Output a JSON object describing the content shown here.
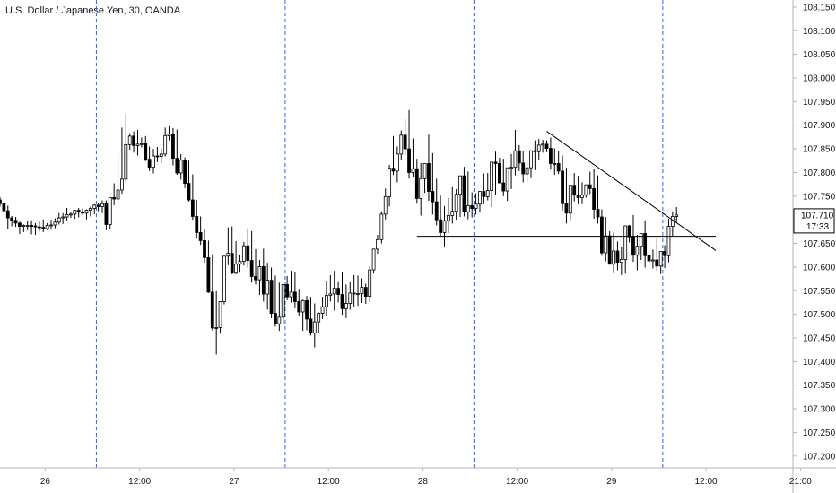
{
  "header": {
    "title": "U.S. Dollar / Japanese Yen, 30, OANDA"
  },
  "colors": {
    "candle_up_fill": "#ffffff",
    "candle_down_fill": "#000000",
    "candle_outline": "#000000",
    "session_line": "#2962ff",
    "axis_text": "#131722",
    "axis_line": "#b2b5be"
  },
  "price_label": {
    "value": "107.710",
    "countdown": "17:33"
  },
  "chart_data": {
    "type": "candlestick",
    "title": "U.S. Dollar / Japanese Yen, 30, OANDA",
    "ylim": [
      107.175,
      108.165
    ],
    "y_ticks": [
      "108.150",
      "108.100",
      "108.050",
      "108.000",
      "107.950",
      "107.900",
      "107.850",
      "107.800",
      "107.750",
      "107.650",
      "107.600",
      "107.550",
      "107.500",
      "107.450",
      "107.400",
      "107.350",
      "107.300",
      "107.250",
      "107.200"
    ],
    "x_ticks": [
      "26",
      "12:00",
      "27",
      "12:00",
      "28",
      "12:00",
      "29",
      "12:00",
      "21:00"
    ],
    "x_tick_bars": [
      11.5,
      35.5,
      59.5,
      83.5,
      107.5,
      131.5,
      155.5,
      179.5,
      203.5
    ],
    "session_breaks_bars": [
      24.5,
      72.5,
      120.5,
      168.5
    ],
    "current_price": 107.71,
    "horizontal_line": {
      "price": 107.665,
      "from_bar": 106,
      "to_bar": 182
    },
    "trend_line": {
      "from": {
        "bar": 139,
        "price": 107.887
      },
      "to": {
        "bar": 182,
        "price": 107.635
      }
    },
    "candles": {
      "open": [
        107.742,
        107.734,
        107.719,
        107.704,
        107.699,
        107.693,
        107.686,
        107.688,
        107.688,
        107.687,
        107.685,
        107.684,
        107.681,
        107.688,
        107.689,
        107.695,
        107.704,
        107.706,
        107.711,
        107.712,
        107.72,
        107.716,
        107.714,
        107.72,
        107.724,
        107.731,
        107.728,
        107.734,
        107.69,
        107.747,
        107.744,
        107.763,
        107.786,
        107.859,
        107.877,
        107.857,
        107.86,
        107.861,
        107.828,
        107.811,
        107.835,
        107.834,
        107.839,
        107.878,
        107.881,
        107.83,
        107.799,
        107.826,
        107.777,
        107.742,
        107.707,
        107.673,
        107.656,
        107.62,
        107.547,
        107.471,
        107.472,
        107.527,
        107.623,
        107.629,
        107.587,
        107.606,
        107.612,
        107.645,
        107.614,
        107.58,
        107.573,
        107.601,
        107.543,
        107.572,
        107.502,
        107.48,
        107.494,
        107.563,
        107.537,
        107.547,
        107.527,
        107.505,
        107.529,
        107.49,
        107.46,
        107.484,
        107.502,
        107.516,
        107.54,
        107.543,
        107.555,
        107.542,
        107.512,
        107.523,
        107.545,
        107.543,
        107.544,
        107.557,
        107.538,
        107.594,
        107.638,
        107.658,
        107.712,
        107.749,
        107.809,
        107.803,
        107.839,
        107.879,
        107.85,
        107.8,
        107.808,
        107.745,
        107.787,
        107.819,
        107.76,
        107.738,
        107.7,
        107.673,
        107.698,
        107.709,
        107.718,
        107.754,
        107.793,
        107.717,
        107.73,
        107.724,
        107.733,
        107.76,
        107.749,
        107.762,
        107.822,
        107.819,
        107.778,
        107.761,
        107.81,
        107.811,
        107.846,
        107.82,
        107.797,
        107.81,
        107.846,
        107.844,
        107.858,
        107.86,
        107.851,
        107.819,
        107.819,
        107.803,
        107.734,
        107.714,
        107.773,
        107.752,
        107.747,
        107.752,
        107.774,
        107.766,
        107.722,
        107.706,
        107.63,
        107.666,
        107.606,
        107.634,
        107.61,
        107.616,
        107.687,
        107.664,
        107.625,
        107.644,
        107.671,
        107.624,
        107.613,
        107.615,
        107.602,
        107.633,
        107.624,
        107.686,
        107.707
      ],
      "high": [
        107.748,
        107.738,
        107.73,
        107.708,
        107.706,
        107.696,
        107.69,
        107.697,
        107.699,
        107.693,
        107.697,
        107.701,
        107.693,
        107.7,
        107.703,
        107.714,
        107.714,
        107.725,
        107.716,
        107.721,
        107.725,
        107.724,
        107.722,
        107.728,
        107.733,
        107.736,
        107.741,
        107.741,
        107.744,
        107.777,
        107.839,
        107.895,
        107.924,
        107.883,
        107.887,
        107.89,
        107.874,
        107.877,
        107.855,
        107.85,
        107.854,
        107.851,
        107.895,
        107.898,
        107.894,
        107.891,
        107.839,
        107.832,
        107.825,
        107.796,
        107.742,
        107.707,
        107.681,
        107.656,
        107.627,
        107.549,
        107.517,
        107.546,
        107.684,
        107.686,
        107.655,
        107.625,
        107.653,
        107.682,
        107.676,
        107.638,
        107.615,
        107.639,
        107.609,
        107.599,
        107.582,
        107.567,
        107.526,
        107.581,
        107.592,
        107.589,
        107.554,
        107.531,
        107.539,
        107.537,
        107.523,
        107.504,
        107.537,
        107.571,
        107.583,
        107.592,
        107.568,
        107.59,
        107.563,
        107.568,
        107.583,
        107.582,
        107.576,
        107.565,
        107.601,
        107.639,
        107.668,
        107.718,
        107.766,
        107.816,
        107.877,
        107.855,
        107.889,
        107.913,
        107.932,
        107.872,
        107.829,
        107.82,
        107.812,
        107.88,
        107.841,
        107.787,
        107.751,
        107.729,
        107.746,
        107.769,
        107.765,
        107.77,
        107.812,
        107.802,
        107.758,
        107.756,
        107.741,
        107.798,
        107.799,
        107.771,
        107.844,
        107.831,
        107.829,
        107.8,
        107.839,
        107.89,
        107.858,
        107.846,
        107.822,
        107.839,
        107.868,
        107.871,
        107.869,
        107.868,
        107.874,
        107.851,
        107.845,
        107.836,
        107.81,
        107.755,
        107.799,
        107.793,
        107.779,
        107.771,
        107.802,
        107.807,
        107.794,
        107.722,
        107.706,
        107.676,
        107.673,
        107.654,
        107.643,
        107.688,
        107.689,
        107.71,
        107.668,
        107.66,
        107.699,
        107.673,
        107.637,
        107.66,
        107.63,
        107.646,
        107.702,
        107.718,
        107.727
      ],
      "low": [
        107.728,
        107.716,
        107.68,
        107.686,
        107.685,
        107.67,
        107.674,
        107.678,
        107.669,
        107.668,
        107.675,
        107.674,
        107.678,
        107.679,
        107.682,
        107.69,
        107.691,
        107.697,
        107.704,
        107.702,
        107.705,
        107.711,
        107.701,
        107.707,
        107.712,
        107.718,
        107.714,
        107.678,
        107.681,
        107.731,
        107.737,
        107.755,
        107.779,
        107.848,
        107.842,
        107.836,
        107.853,
        107.824,
        107.803,
        107.798,
        107.822,
        107.82,
        107.834,
        107.868,
        107.815,
        107.795,
        107.785,
        107.767,
        107.739,
        107.7,
        107.66,
        107.647,
        107.609,
        107.545,
        107.466,
        107.415,
        107.459,
        107.521,
        107.604,
        107.585,
        107.585,
        107.588,
        107.603,
        107.598,
        107.567,
        107.563,
        107.541,
        107.527,
        107.51,
        107.492,
        107.474,
        107.465,
        107.478,
        107.53,
        107.525,
        107.513,
        107.497,
        107.465,
        107.466,
        107.455,
        107.43,
        107.461,
        107.49,
        107.497,
        107.527,
        107.508,
        107.525,
        107.499,
        107.492,
        107.51,
        107.515,
        107.518,
        107.524,
        107.522,
        107.526,
        107.586,
        107.628,
        107.65,
        107.701,
        107.728,
        107.795,
        107.779,
        107.826,
        107.836,
        107.787,
        107.791,
        107.734,
        107.709,
        107.757,
        107.74,
        107.711,
        107.688,
        107.665,
        107.642,
        107.672,
        107.692,
        107.7,
        107.706,
        107.707,
        107.701,
        107.705,
        107.711,
        107.715,
        107.733,
        107.741,
        107.727,
        107.752,
        107.785,
        107.75,
        107.74,
        107.765,
        107.794,
        107.803,
        107.779,
        107.779,
        107.788,
        107.805,
        107.827,
        107.842,
        107.843,
        107.806,
        107.795,
        107.797,
        107.72,
        107.692,
        107.699,
        107.739,
        107.733,
        107.733,
        107.747,
        107.754,
        107.702,
        107.692,
        107.624,
        107.612,
        107.621,
        107.587,
        107.593,
        107.583,
        107.586,
        107.652,
        107.611,
        107.593,
        107.615,
        107.599,
        107.592,
        107.597,
        107.592,
        107.585,
        107.598,
        107.61,
        107.666,
        107.693
      ],
      "close": [
        107.734,
        107.719,
        107.704,
        107.699,
        107.693,
        107.686,
        107.688,
        107.688,
        107.687,
        107.685,
        107.684,
        107.681,
        107.688,
        107.689,
        107.695,
        107.704,
        107.706,
        107.711,
        107.712,
        107.72,
        107.716,
        107.714,
        107.72,
        107.724,
        107.731,
        107.728,
        107.734,
        107.69,
        107.747,
        107.744,
        107.763,
        107.786,
        107.859,
        107.877,
        107.857,
        107.86,
        107.861,
        107.828,
        107.811,
        107.835,
        107.834,
        107.839,
        107.878,
        107.881,
        107.83,
        107.799,
        107.826,
        107.777,
        107.742,
        107.707,
        107.673,
        107.656,
        107.62,
        107.547,
        107.471,
        107.472,
        107.527,
        107.623,
        107.629,
        107.587,
        107.606,
        107.612,
        107.645,
        107.614,
        107.58,
        107.573,
        107.601,
        107.543,
        107.572,
        107.502,
        107.48,
        107.494,
        107.563,
        107.537,
        107.547,
        107.527,
        107.505,
        107.529,
        107.49,
        107.46,
        107.484,
        107.502,
        107.516,
        107.54,
        107.543,
        107.555,
        107.542,
        107.512,
        107.523,
        107.545,
        107.543,
        107.544,
        107.557,
        107.538,
        107.594,
        107.638,
        107.658,
        107.712,
        107.749,
        107.809,
        107.803,
        107.839,
        107.879,
        107.85,
        107.8,
        107.808,
        107.745,
        107.787,
        107.819,
        107.76,
        107.738,
        107.7,
        107.673,
        107.698,
        107.709,
        107.718,
        107.754,
        107.793,
        107.717,
        107.73,
        107.724,
        107.733,
        107.76,
        107.749,
        107.762,
        107.822,
        107.819,
        107.778,
        107.761,
        107.81,
        107.811,
        107.846,
        107.82,
        107.797,
        107.81,
        107.846,
        107.844,
        107.858,
        107.86,
        107.851,
        107.819,
        107.819,
        107.803,
        107.734,
        107.714,
        107.773,
        107.752,
        107.747,
        107.752,
        107.774,
        107.766,
        107.722,
        107.706,
        107.63,
        107.666,
        107.606,
        107.634,
        107.61,
        107.616,
        107.687,
        107.664,
        107.625,
        107.644,
        107.671,
        107.624,
        107.613,
        107.615,
        107.602,
        107.633,
        107.624,
        107.686,
        107.707,
        107.71
      ]
    }
  }
}
